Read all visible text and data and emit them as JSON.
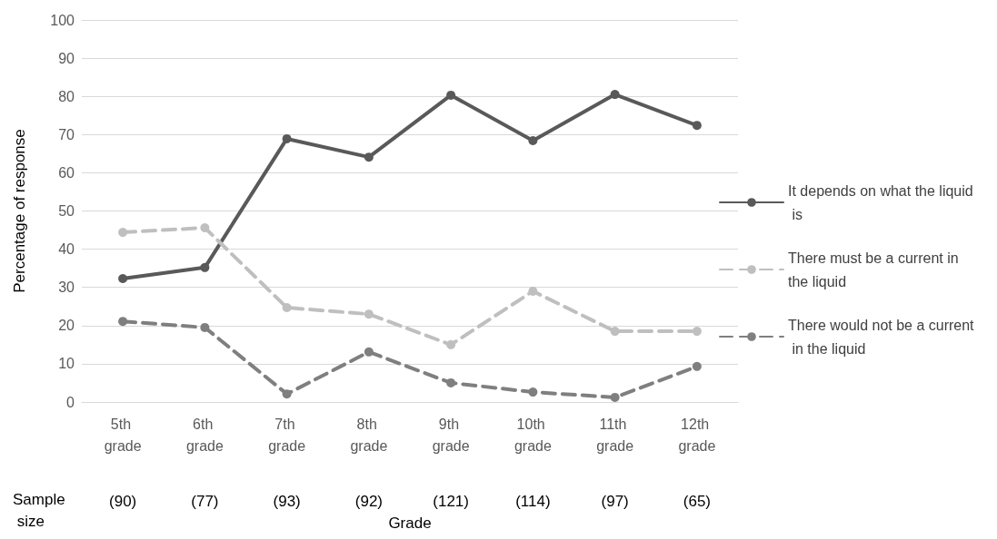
{
  "chart_data": {
    "type": "line",
    "xlabel": "Grade",
    "ylabel": "Percentage of response",
    "categories": [
      "5th grade",
      "6th grade",
      "7th grade",
      "8th grade",
      "9th grade",
      "10th grade",
      "11th grade",
      "12th grade"
    ],
    "series": [
      {
        "name": "It depends on what the liquid is",
        "color": "#595959",
        "line_style": "solid",
        "values": [
          32.3,
          35.2,
          68.9,
          64.1,
          80.3,
          68.4,
          80.5,
          72.4
        ]
      },
      {
        "name": "There must be a current in the liquid",
        "color": "#bfbfbf",
        "line_style": "dashed",
        "values": [
          44.4,
          45.6,
          24.7,
          23.0,
          15.0,
          29.0,
          18.5,
          18.5
        ]
      },
      {
        "name": "There would not be a current in the liquid",
        "color": "#7f7f7f",
        "line_style": "dashed",
        "values": [
          21.1,
          19.5,
          2.1,
          13.1,
          5.0,
          2.6,
          1.2,
          9.3
        ]
      }
    ],
    "ylim": [
      0,
      100
    ],
    "yticks": [
      0,
      10,
      20,
      30,
      40,
      50,
      60,
      70,
      80,
      90,
      100
    ],
    "grid": "y",
    "legend": "right",
    "marker": "circle",
    "annotations": [
      "Sample size",
      "(90)",
      "(77)",
      "(93)",
      "(92)",
      "(121)",
      "(114)",
      "(97)",
      "(65)"
    ]
  }
}
